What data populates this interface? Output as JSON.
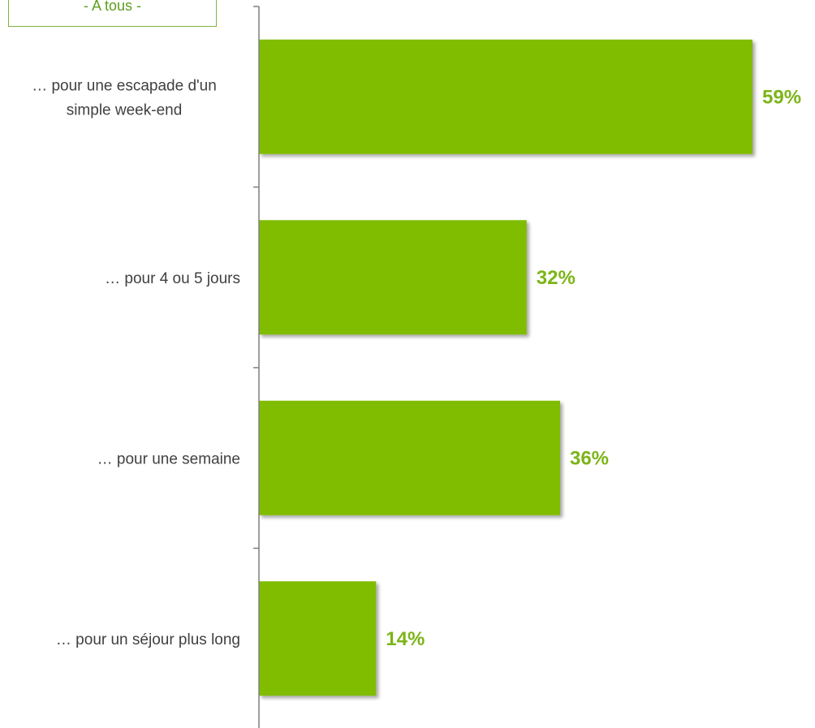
{
  "filter_label": "- A tous -",
  "colors": {
    "bar": "#80bc04",
    "value_label": "#7cb518",
    "axis": "#7f7f7f",
    "category_label": "#404040"
  },
  "chart_data": {
    "type": "bar",
    "orientation": "horizontal",
    "categories": [
      [
        "… pour une escapade d'un",
        "simple week-end"
      ],
      [
        "… pour 4 ou 5 jours"
      ],
      [
        "… pour une semaine"
      ],
      [
        "… pour un séjour plus long"
      ]
    ],
    "values": [
      59,
      32,
      36,
      14
    ],
    "value_labels": [
      "59%",
      "32%",
      "36%",
      "14%"
    ],
    "unit": "%",
    "xlim": [
      0,
      65
    ],
    "grid": false,
    "legend": "none"
  }
}
